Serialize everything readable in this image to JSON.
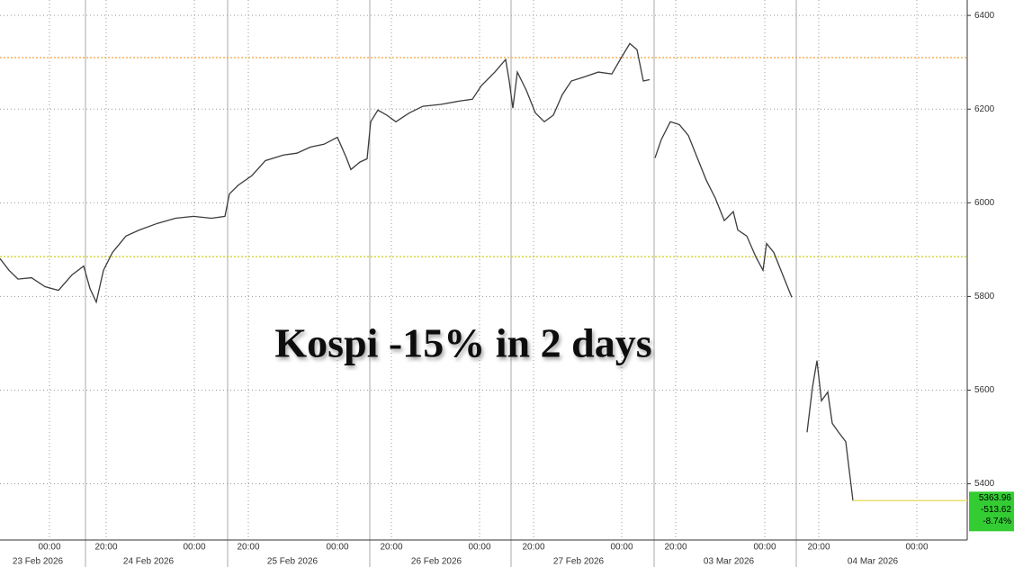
{
  "chart_data": {
    "type": "line",
    "annotation": "Kospi -15% in 2 days",
    "x": [
      0,
      10,
      20,
      35,
      50,
      65,
      80,
      93,
      100,
      107,
      115,
      125,
      140,
      155,
      175,
      195,
      215,
      235,
      250,
      255,
      265,
      280,
      295,
      315,
      330,
      345,
      360,
      375,
      385,
      390,
      400,
      408,
      412,
      420,
      430,
      440,
      455,
      470,
      490,
      510,
      525,
      535,
      550,
      562,
      566,
      570,
      575,
      585,
      595,
      605,
      615,
      625,
      635,
      650,
      665,
      680,
      690,
      700,
      708,
      715,
      722,
      725,
      728,
      735,
      745,
      755,
      765,
      775,
      785,
      795,
      805,
      815,
      820,
      830,
      840,
      848,
      852,
      860,
      870,
      880,
      890,
      897,
      903,
      908,
      913,
      920,
      925,
      932,
      940,
      948
    ],
    "series": [
      {
        "color": "#3c3c3c",
        "values": [
          5881,
          5856,
          5837,
          5840,
          5821,
          5813,
          5846,
          5865,
          5817,
          5788,
          5856,
          5894,
          5929,
          5942,
          5956,
          5967,
          5971,
          5967,
          5971,
          6019,
          6038,
          6058,
          6090,
          6102,
          6106,
          6119,
          6125,
          6140,
          6096,
          6071,
          6087,
          6094,
          6173,
          6198,
          6187,
          6173,
          6192,
          6206,
          6210,
          6217,
          6221,
          6250,
          6279,
          6306,
          6260,
          6202,
          6279,
          6240,
          6192,
          6173,
          6187,
          6231,
          6260,
          6269,
          6279,
          6275,
          6308,
          6340,
          6327,
          6260,
          6263,
          null,
          6096,
          6135,
          6173,
          6167,
          6144,
          6096,
          6048,
          6010,
          5962,
          5981,
          5942,
          5929,
          5885,
          5856,
          5913,
          5894,
          5846,
          5798,
          null,
          5510,
          5606,
          5663,
          5577,
          5596,
          5529,
          5510,
          5490,
          5363.96
        ]
      }
    ],
    "last_price_color": "#e8e070",
    "last_label": {
      "color": "#33cc33",
      "values": [
        5363.96,
        -513.62,
        -8.74
      ],
      "value_labels": [
        "5363.96",
        "-513.62",
        "-8.74%"
      ]
    },
    "ref_lines": [
      {
        "value": 6310,
        "color": "#f0a040"
      },
      {
        "value": 5885,
        "color": "#c8c800"
      }
    ],
    "xlim": [
      0,
      1075
    ],
    "ylim": [
      5280,
      6433
    ],
    "yticks": [
      5400,
      5600,
      5800,
      6000,
      6200,
      6400
    ],
    "xticks": [
      {
        "value": 55,
        "label": "00:00"
      },
      {
        "value": 118,
        "label": "20:00"
      },
      {
        "value": 216,
        "label": "00:00"
      },
      {
        "value": 276,
        "label": "20:00"
      },
      {
        "value": 375,
        "label": "00:00"
      },
      {
        "value": 435,
        "label": "20:00"
      },
      {
        "value": 533,
        "label": "00:00"
      },
      {
        "value": 593,
        "label": "20:00"
      },
      {
        "value": 691,
        "label": "00:00"
      },
      {
        "value": 751,
        "label": "20:00"
      },
      {
        "value": 850,
        "label": "00:00"
      },
      {
        "value": 910,
        "label": "20:00"
      },
      {
        "value": 1019,
        "label": "00:00"
      }
    ],
    "session_breaks": [
      95,
      253,
      411,
      568,
      727,
      885
    ],
    "date_labels": [
      {
        "value": 42,
        "label": "23 Feb 2026"
      },
      {
        "value": 165,
        "label": "24 Feb 2026"
      },
      {
        "value": 325,
        "label": "25 Feb 2026"
      },
      {
        "value": 485,
        "label": "26 Feb 2026"
      },
      {
        "value": 643,
        "label": "27 Feb 2026"
      },
      {
        "value": 810,
        "label": "03 Mar 2026"
      },
      {
        "value": 970,
        "label": "04 Mar 2026"
      }
    ],
    "grid": true
  }
}
